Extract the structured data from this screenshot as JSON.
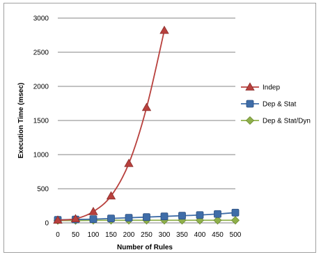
{
  "chart_data": {
    "type": "line",
    "title": "",
    "xlabel": "Number of Rules",
    "ylabel": "Execution Time (msec)",
    "x": [
      0,
      50,
      100,
      150,
      200,
      250,
      300,
      350,
      400,
      450,
      500
    ],
    "xlim": [
      0,
      500
    ],
    "ylim": [
      0,
      3000
    ],
    "yticks": [
      0,
      500,
      1000,
      1500,
      2000,
      2500,
      3000
    ],
    "grid": "horizontal",
    "legend_position": "right",
    "series": [
      {
        "name": "Indep",
        "color": "#b8403d",
        "marker": "triangle",
        "x": [
          0,
          50,
          100,
          150,
          200,
          250,
          300
        ],
        "values": [
          40,
          60,
          165,
          395,
          870,
          1690,
          2820
        ]
      },
      {
        "name": "Dep & Stat",
        "color": "#3f6da8",
        "marker": "square",
        "x": [
          0,
          50,
          100,
          150,
          200,
          250,
          300,
          350,
          400,
          450,
          500
        ],
        "values": [
          45,
          50,
          55,
          65,
          75,
          85,
          95,
          105,
          115,
          130,
          150
        ]
      },
      {
        "name": "Dep & Stat/Dyn",
        "color": "#8fb04a",
        "marker": "diamond",
        "x": [
          0,
          50,
          100,
          150,
          200,
          250,
          300,
          350,
          400,
          450,
          500
        ],
        "values": [
          35,
          35,
          38,
          38,
          38,
          38,
          38,
          38,
          38,
          38,
          38
        ]
      }
    ]
  }
}
